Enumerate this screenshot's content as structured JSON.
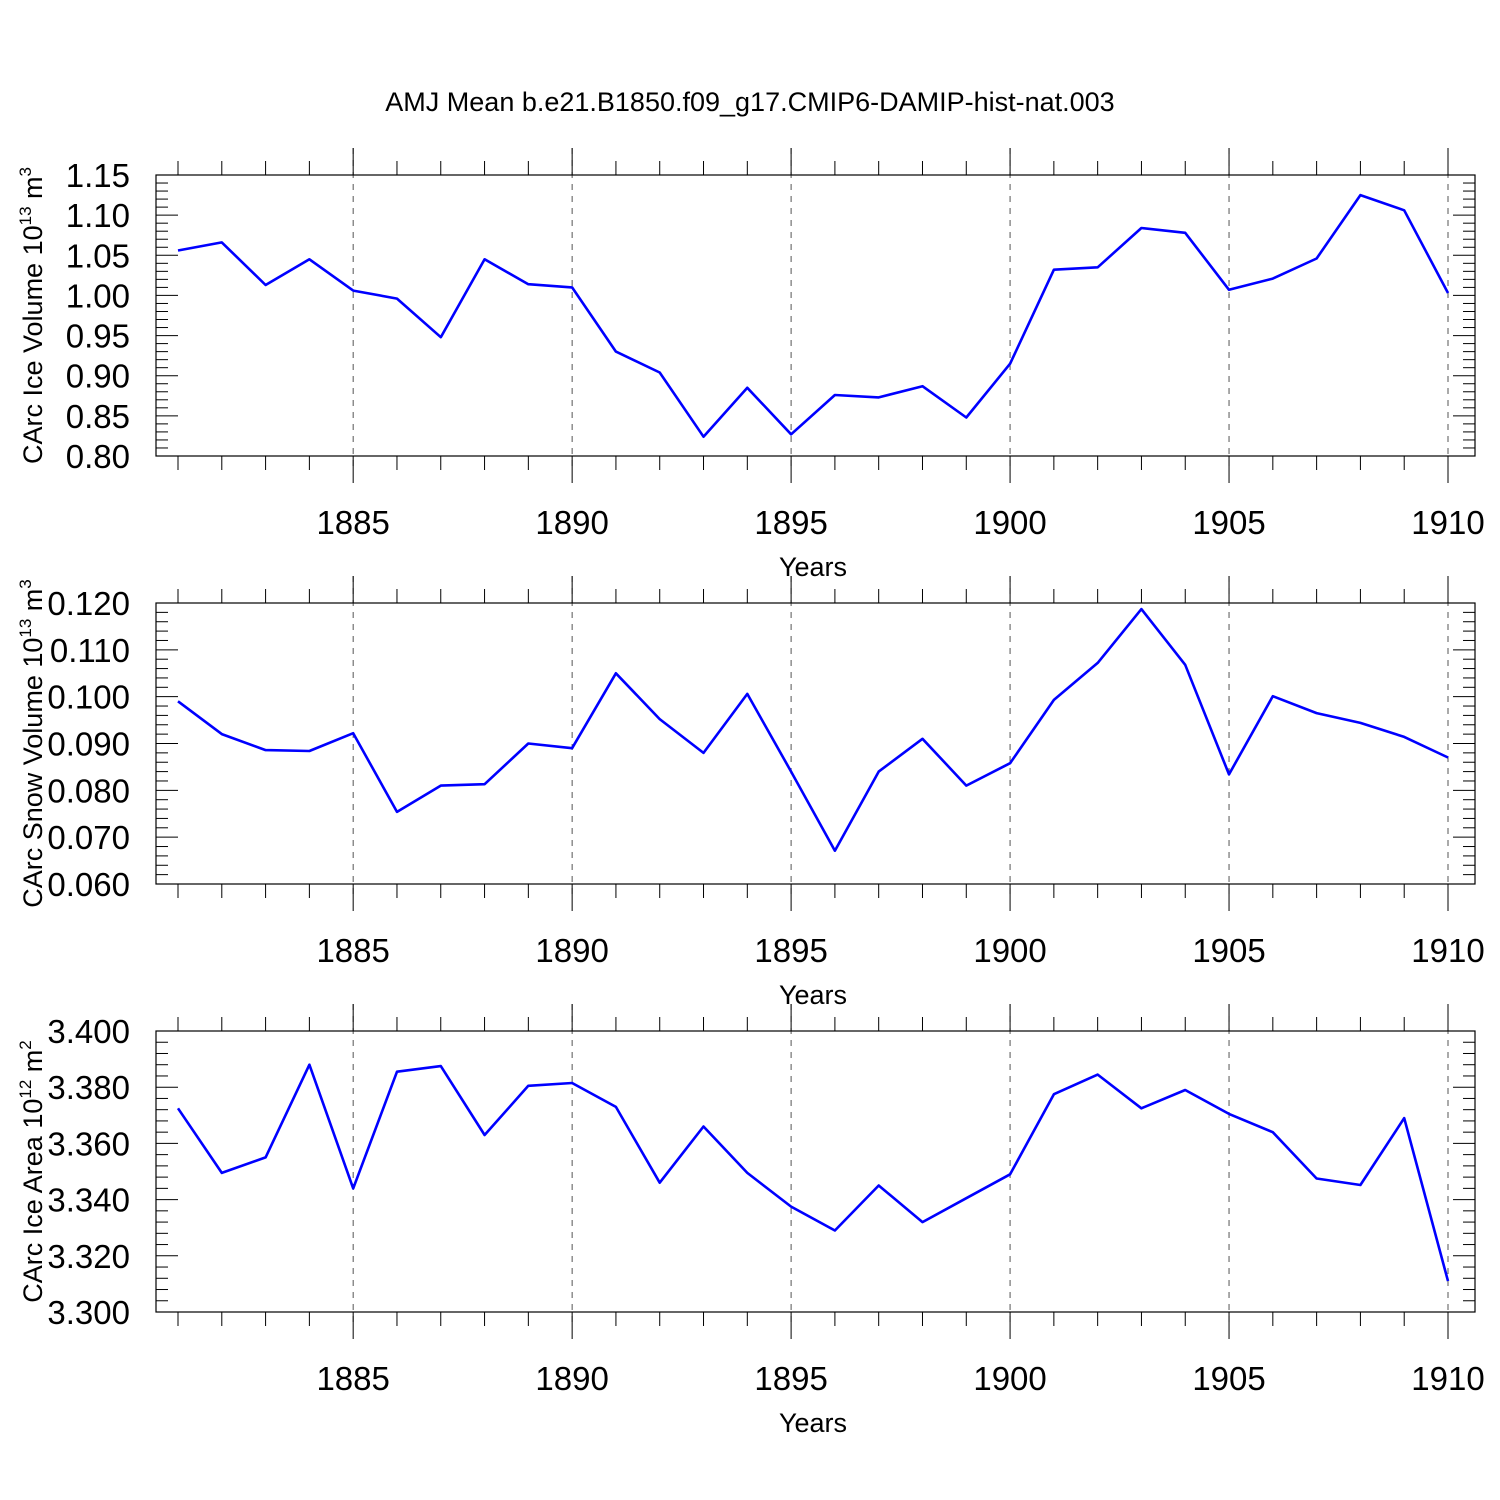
{
  "title": "AMJ Mean b.e21.B1850.f09_g17.CMIP6-DAMIP-hist-nat.003",
  "line_color": "#0000ff",
  "chart_data": [
    {
      "type": "line",
      "xlabel": "Years",
      "ylabel": "CArc Ice Volume 10",
      "ylabel_exp": "13",
      "ylabel_unit": " m",
      "ylabel_unit_exp": "3",
      "xlim": [
        1881,
        1910
      ],
      "ylim": [
        0.8,
        1.15
      ],
      "yticks": [
        0.8,
        0.85,
        0.9,
        0.95,
        1.0,
        1.05,
        1.1,
        1.15
      ],
      "ytick_labels": [
        "0.80",
        "0.85",
        "0.90",
        "0.95",
        "1.00",
        "1.05",
        "1.10",
        "1.15"
      ],
      "xticks": [
        1885,
        1890,
        1895,
        1900,
        1905,
        1910
      ],
      "xtick_labels": [
        "1885",
        "1890",
        "1895",
        "1900",
        "1905",
        "1910"
      ],
      "grid": "vertical dashed at major x ticks",
      "x": [
        1881,
        1882,
        1883,
        1884,
        1885,
        1886,
        1887,
        1888,
        1889,
        1890,
        1891,
        1892,
        1893,
        1894,
        1895,
        1896,
        1897,
        1898,
        1899,
        1900,
        1901,
        1902,
        1903,
        1904,
        1905,
        1906,
        1907,
        1908,
        1909,
        1910
      ],
      "series": [
        {
          "values": [
            1.056,
            1.066,
            1.013,
            1.045,
            1.006,
            0.996,
            0.948,
            1.045,
            1.014,
            1.01,
            0.93,
            0.904,
            0.824,
            0.885,
            0.827,
            0.876,
            0.873,
            0.887,
            0.848,
            0.915,
            1.032,
            1.035,
            1.084,
            1.078,
            1.007,
            1.021,
            1.046,
            1.125,
            1.106,
            1.003
          ]
        }
      ]
    },
    {
      "type": "line",
      "xlabel": "Years",
      "ylabel": "CArc Snow Volume 10",
      "ylabel_exp": "13",
      "ylabel_unit": " m",
      "ylabel_unit_exp": "3",
      "xlim": [
        1881,
        1910
      ],
      "ylim": [
        0.06,
        0.12
      ],
      "yticks": [
        0.06,
        0.07,
        0.08,
        0.09,
        0.1,
        0.11,
        0.12
      ],
      "ytick_labels": [
        "0.060",
        "0.070",
        "0.080",
        "0.090",
        "0.100",
        "0.110",
        "0.120"
      ],
      "xticks": [
        1885,
        1890,
        1895,
        1900,
        1905,
        1910
      ],
      "xtick_labels": [
        "1885",
        "1890",
        "1895",
        "1900",
        "1905",
        "1910"
      ],
      "grid": "vertical dashed at major x ticks",
      "x": [
        1881,
        1882,
        1883,
        1884,
        1885,
        1886,
        1887,
        1888,
        1889,
        1890,
        1891,
        1892,
        1893,
        1894,
        1895,
        1896,
        1897,
        1898,
        1899,
        1900,
        1901,
        1902,
        1903,
        1904,
        1905,
        1906,
        1907,
        1908,
        1909,
        1910
      ],
      "series": [
        {
          "values": [
            0.099,
            0.092,
            0.0886,
            0.0884,
            0.0922,
            0.0754,
            0.081,
            0.0813,
            0.09,
            0.089,
            0.105,
            0.0952,
            0.088,
            0.1006,
            0.084,
            0.0671,
            0.084,
            0.091,
            0.081,
            0.0858,
            0.0993,
            0.1072,
            0.1187,
            0.1068,
            0.0834,
            0.1001,
            0.0965,
            0.0944,
            0.0914,
            0.087
          ]
        }
      ]
    },
    {
      "type": "line",
      "xlabel": "Years",
      "ylabel": "CArc Ice Area 10",
      "ylabel_exp": "12",
      "ylabel_unit": " m",
      "ylabel_unit_exp": "2",
      "xlim": [
        1881,
        1910
      ],
      "ylim": [
        3.3,
        3.4
      ],
      "yticks": [
        3.3,
        3.32,
        3.34,
        3.36,
        3.38,
        3.4
      ],
      "ytick_labels": [
        "3.300",
        "3.320",
        "3.340",
        "3.360",
        "3.380",
        "3.400"
      ],
      "xticks": [
        1885,
        1890,
        1895,
        1900,
        1905,
        1910
      ],
      "xtick_labels": [
        "1885",
        "1890",
        "1895",
        "1900",
        "1905",
        "1910"
      ],
      "grid": "vertical dashed at major x ticks",
      "x": [
        1881,
        1882,
        1883,
        1884,
        1885,
        1886,
        1887,
        1888,
        1889,
        1890,
        1891,
        1892,
        1893,
        1894,
        1895,
        1896,
        1897,
        1898,
        1899,
        1900,
        1901,
        1902,
        1903,
        1904,
        1905,
        1906,
        1907,
        1908,
        1909,
        1910
      ],
      "series": [
        {
          "values": [
            3.3725,
            3.3495,
            3.355,
            3.388,
            3.344,
            3.3855,
            3.3875,
            3.363,
            3.3805,
            3.3815,
            3.373,
            3.346,
            3.366,
            3.3495,
            3.3375,
            3.329,
            3.345,
            3.332,
            3.3405,
            3.349,
            3.3775,
            3.3845,
            3.3725,
            3.379,
            3.3705,
            3.364,
            3.3475,
            3.3452,
            3.369,
            3.311
          ]
        }
      ]
    }
  ]
}
